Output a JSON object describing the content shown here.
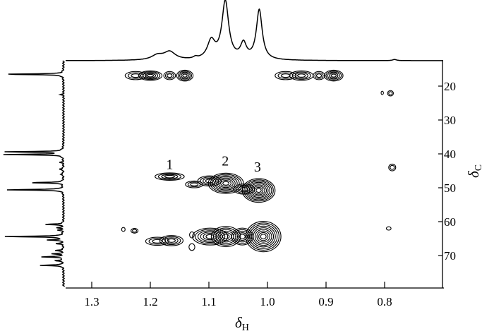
{
  "chart_data": {
    "type": "heatmap",
    "subtype": "2D NMR contour (HSQC) with 1D projections",
    "xlabel": {
      "symbol": "δ",
      "sub": "H"
    },
    "ylabel": {
      "symbol": "δ",
      "sub": "C"
    },
    "xlim": [
      1.345,
      0.7
    ],
    "ylim": [
      12.7,
      77.4
    ],
    "x_ticks": [
      {
        "v": 1.3,
        "label": "1.3"
      },
      {
        "v": 1.2,
        "label": "1.2"
      },
      {
        "v": 1.1,
        "label": "1.1"
      },
      {
        "v": 1.0,
        "label": "1.0"
      },
      {
        "v": 0.9,
        "label": "0.9"
      },
      {
        "v": 0.8,
        "label": "0.8"
      }
    ],
    "y_ticks": [
      {
        "v": 20,
        "label": "20"
      },
      {
        "v": 30,
        "label": "30"
      },
      {
        "v": 40,
        "label": "40"
      },
      {
        "v": 50,
        "label": "50"
      },
      {
        "v": 60,
        "label": "60"
      },
      {
        "v": 70,
        "label": "70"
      }
    ],
    "annotations": [
      {
        "text": "1",
        "h": 1.167,
        "c": 43.2
      },
      {
        "text": "2",
        "h": 1.072,
        "c": 42.2
      },
      {
        "text": "3",
        "h": 1.017,
        "c": 44.0
      }
    ],
    "cross_peaks": [
      {
        "h": 1.225,
        "c": 16.9,
        "wh": 0.018,
        "wc": 1.2,
        "levels": 3
      },
      {
        "h": 1.2,
        "c": 16.9,
        "wh": 0.02,
        "wc": 1.4,
        "levels": 5
      },
      {
        "h": 1.167,
        "c": 16.9,
        "wh": 0.01,
        "wc": 1.2,
        "levels": 3
      },
      {
        "h": 1.141,
        "c": 16.9,
        "wh": 0.014,
        "wc": 1.6,
        "levels": 5
      },
      {
        "h": 0.969,
        "c": 16.9,
        "wh": 0.018,
        "wc": 1.2,
        "levels": 3
      },
      {
        "h": 0.942,
        "c": 16.9,
        "wh": 0.02,
        "wc": 1.4,
        "levels": 4
      },
      {
        "h": 0.912,
        "c": 16.9,
        "wh": 0.01,
        "wc": 1.2,
        "levels": 3
      },
      {
        "h": 0.887,
        "c": 16.9,
        "wh": 0.016,
        "wc": 1.6,
        "levels": 5
      },
      {
        "h": 0.804,
        "c": 22.0,
        "wh": 0.002,
        "wc": 0.5,
        "levels": 1
      },
      {
        "h": 0.79,
        "c": 22.1,
        "wh": 0.005,
        "wc": 0.8,
        "levels": 2
      },
      {
        "h": 0.787,
        "c": 44.0,
        "wh": 0.006,
        "wc": 1.0,
        "levels": 2
      },
      {
        "h": 0.793,
        "c": 62.0,
        "wh": 0.004,
        "wc": 0.5,
        "levels": 1
      },
      {
        "h": 1.167,
        "c": 46.7,
        "wh": 0.025,
        "wc": 1.1,
        "levels": 4
      },
      {
        "h": 1.125,
        "c": 49.0,
        "wh": 0.015,
        "wc": 1.0,
        "levels": 3
      },
      {
        "h": 1.099,
        "c": 48.0,
        "wh": 0.02,
        "wc": 1.5,
        "levels": 4
      },
      {
        "h": 1.071,
        "c": 48.7,
        "wh": 0.03,
        "wc": 3.0,
        "levels": 8
      },
      {
        "h": 1.04,
        "c": 50.4,
        "wh": 0.018,
        "wc": 1.5,
        "levels": 4
      },
      {
        "h": 1.015,
        "c": 50.8,
        "wh": 0.028,
        "wc": 3.5,
        "levels": 9
      },
      {
        "h": 1.246,
        "c": 62.3,
        "wh": 0.003,
        "wc": 0.6,
        "levels": 1
      },
      {
        "h": 1.227,
        "c": 62.7,
        "wh": 0.006,
        "wc": 0.7,
        "levels": 2
      },
      {
        "h": 1.188,
        "c": 65.8,
        "wh": 0.02,
        "wc": 1.2,
        "levels": 3
      },
      {
        "h": 1.164,
        "c": 65.6,
        "wh": 0.02,
        "wc": 1.5,
        "levels": 4
      },
      {
        "h": 1.129,
        "c": 63.9,
        "wh": 0.004,
        "wc": 0.9,
        "levels": 1
      },
      {
        "h": 1.129,
        "c": 67.5,
        "wh": 0.005,
        "wc": 1.0,
        "levels": 1
      },
      {
        "h": 1.098,
        "c": 64.4,
        "wh": 0.03,
        "wc": 2.5,
        "levels": 6
      },
      {
        "h": 1.071,
        "c": 64.4,
        "wh": 0.025,
        "wc": 3.0,
        "levels": 6
      },
      {
        "h": 1.043,
        "c": 64.4,
        "wh": 0.018,
        "wc": 2.5,
        "levels": 5
      },
      {
        "h": 1.007,
        "c": 64.4,
        "wh": 0.03,
        "wc": 4.5,
        "levels": 9
      }
    ],
    "proton_1d": [
      {
        "ppm": 1.072,
        "intensity": 100,
        "width": 0.007
      },
      {
        "ppm": 1.014,
        "intensity": 86,
        "width": 0.006
      },
      {
        "ppm": 1.096,
        "intensity": 31,
        "width": 0.008
      },
      {
        "ppm": 1.041,
        "intensity": 26,
        "width": 0.006
      },
      {
        "ppm": 1.167,
        "intensity": 14,
        "width": 0.012
      },
      {
        "ppm": 1.188,
        "intensity": 8,
        "width": 0.012
      },
      {
        "ppm": 1.123,
        "intensity": 3,
        "width": 0.004
      },
      {
        "ppm": 0.783,
        "intensity": 2,
        "width": 0.004
      }
    ],
    "carbon_1d": [
      {
        "ppm": 16.5,
        "intensity": 100
      },
      {
        "ppm": 39.4,
        "intensity": 97
      },
      {
        "ppm": 40.2,
        "intensity": 95
      },
      {
        "ppm": 48.5,
        "intensity": 56
      },
      {
        "ppm": 50.6,
        "intensity": 97
      },
      {
        "ppm": 60.8,
        "intensity": 31
      },
      {
        "ppm": 64.4,
        "intensity": 100
      },
      {
        "ppm": 65.4,
        "intensity": 26
      },
      {
        "ppm": 66.5,
        "intensity": 12
      },
      {
        "ppm": 68.5,
        "intensity": 14
      },
      {
        "ppm": 69.5,
        "intensity": 18
      },
      {
        "ppm": 70.4,
        "intensity": 36
      },
      {
        "ppm": 71.5,
        "intensity": 15
      },
      {
        "ppm": 72.9,
        "intensity": 40
      },
      {
        "ppm": 22.5,
        "intensity": 4
      },
      {
        "ppm": 42.5,
        "intensity": 5
      },
      {
        "ppm": 44.5,
        "intensity": 8
      },
      {
        "ppm": 46.0,
        "intensity": 6
      },
      {
        "ppm": 61.8,
        "intensity": 10
      },
      {
        "ppm": 62.5,
        "intensity": 8
      }
    ]
  }
}
